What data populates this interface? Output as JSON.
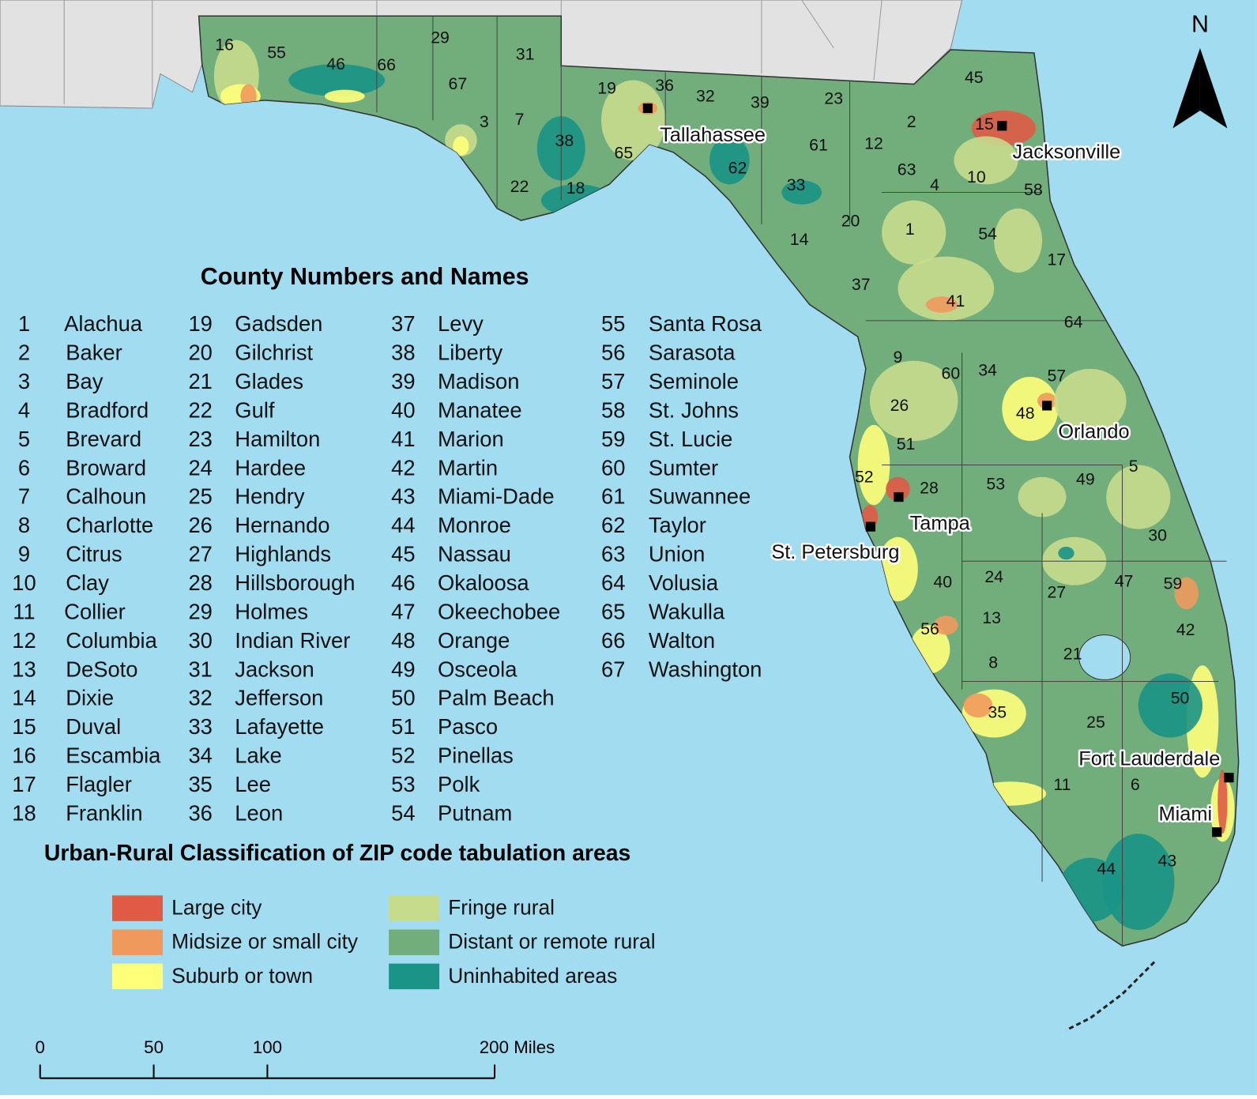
{
  "map": {
    "north_label": "N",
    "county_list_title": "County Numbers and Names",
    "counties": [
      {
        "number": 1,
        "name": "Alachua"
      },
      {
        "number": 2,
        "name": "Baker"
      },
      {
        "number": 3,
        "name": "Bay"
      },
      {
        "number": 4,
        "name": "Bradford"
      },
      {
        "number": 5,
        "name": "Brevard"
      },
      {
        "number": 6,
        "name": "Broward"
      },
      {
        "number": 7,
        "name": "Calhoun"
      },
      {
        "number": 8,
        "name": "Charlotte"
      },
      {
        "number": 9,
        "name": "Citrus"
      },
      {
        "number": 10,
        "name": "Clay"
      },
      {
        "number": 11,
        "name": "Collier"
      },
      {
        "number": 12,
        "name": "Columbia"
      },
      {
        "number": 13,
        "name": "DeSoto"
      },
      {
        "number": 14,
        "name": "Dixie"
      },
      {
        "number": 15,
        "name": "Duval"
      },
      {
        "number": 16,
        "name": "Escambia"
      },
      {
        "number": 17,
        "name": "Flagler"
      },
      {
        "number": 18,
        "name": "Franklin"
      },
      {
        "number": 19,
        "name": "Gadsden"
      },
      {
        "number": 20,
        "name": "Gilchrist"
      },
      {
        "number": 21,
        "name": "Glades"
      },
      {
        "number": 22,
        "name": "Gulf"
      },
      {
        "number": 23,
        "name": "Hamilton"
      },
      {
        "number": 24,
        "name": "Hardee"
      },
      {
        "number": 25,
        "name": "Hendry"
      },
      {
        "number": 26,
        "name": "Hernando"
      },
      {
        "number": 27,
        "name": "Highlands"
      },
      {
        "number": 28,
        "name": "Hillsborough"
      },
      {
        "number": 29,
        "name": "Holmes"
      },
      {
        "number": 30,
        "name": "Indian River"
      },
      {
        "number": 31,
        "name": "Jackson"
      },
      {
        "number": 32,
        "name": "Jefferson"
      },
      {
        "number": 33,
        "name": "Lafayette"
      },
      {
        "number": 34,
        "name": "Lake"
      },
      {
        "number": 35,
        "name": "Lee"
      },
      {
        "number": 36,
        "name": "Leon"
      },
      {
        "number": 37,
        "name": "Levy"
      },
      {
        "number": 38,
        "name": "Liberty"
      },
      {
        "number": 39,
        "name": "Madison"
      },
      {
        "number": 40,
        "name": "Manatee"
      },
      {
        "number": 41,
        "name": "Marion"
      },
      {
        "number": 42,
        "name": "Martin"
      },
      {
        "number": 43,
        "name": "Miami-Dade"
      },
      {
        "number": 44,
        "name": "Monroe"
      },
      {
        "number": 45,
        "name": "Nassau"
      },
      {
        "number": 46,
        "name": "Okaloosa"
      },
      {
        "number": 47,
        "name": "Okeechobee"
      },
      {
        "number": 48,
        "name": "Orange"
      },
      {
        "number": 49,
        "name": "Osceola"
      },
      {
        "number": 50,
        "name": "Palm Beach"
      },
      {
        "number": 51,
        "name": "Pasco"
      },
      {
        "number": 52,
        "name": "Pinellas"
      },
      {
        "number": 53,
        "name": "Polk"
      },
      {
        "number": 54,
        "name": "Putnam"
      },
      {
        "number": 55,
        "name": "Santa Rosa"
      },
      {
        "number": 56,
        "name": "Sarasota"
      },
      {
        "number": 57,
        "name": "Seminole"
      },
      {
        "number": 58,
        "name": "St. Johns"
      },
      {
        "number": 59,
        "name": "St. Lucie"
      },
      {
        "number": 60,
        "name": "Sumter"
      },
      {
        "number": 61,
        "name": "Suwannee"
      },
      {
        "number": 62,
        "name": "Taylor"
      },
      {
        "number": 63,
        "name": "Union"
      },
      {
        "number": 64,
        "name": "Volusia"
      },
      {
        "number": 65,
        "name": "Wakulla"
      },
      {
        "number": 66,
        "name": "Walton"
      },
      {
        "number": 67,
        "name": "Washington"
      }
    ],
    "cities": [
      "Tallahassee",
      "Jacksonville",
      "Orlando",
      "Tampa",
      "St. Petersburg",
      "Fort Lauderdale",
      "Miami"
    ],
    "legend_title": "Urban-Rural Classification of ZIP code tabulation areas",
    "legend": [
      {
        "label": "Large city",
        "color": "#e05a45"
      },
      {
        "label": "Midsize or small city",
        "color": "#ef9a5c"
      },
      {
        "label": "Suburb or town",
        "color": "#ffff7a"
      },
      {
        "label": "Fringe rural",
        "color": "#c6dc8c"
      },
      {
        "label": "Distant or remote rural",
        "color": "#72ad7c"
      },
      {
        "label": "Uninhabited areas",
        "color": "#1a9486"
      }
    ],
    "scale_bar": {
      "ticks": [
        0,
        50,
        100,
        {
          "value": 200,
          "label": "200 Miles"
        }
      ]
    }
  }
}
